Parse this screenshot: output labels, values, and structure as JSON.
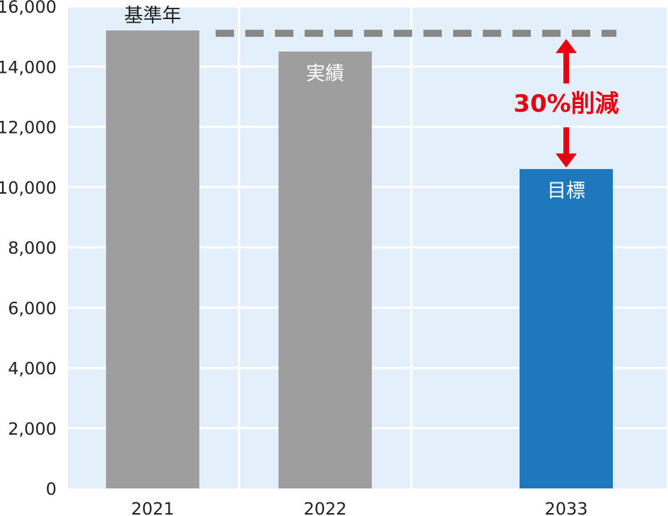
{
  "chart_data": {
    "type": "bar",
    "categories": [
      "2021",
      "2022",
      "2033"
    ],
    "values": [
      15200,
      14500,
      10600
    ],
    "bar_labels": [
      "基準年",
      "実績",
      "目標"
    ],
    "ylim": [
      0,
      16000
    ],
    "yticks": [
      "0",
      "2,000",
      "4,000",
      "6,000",
      "8,000",
      "10,000",
      "12,000",
      "14,000",
      "16,000"
    ],
    "grid": true,
    "reference_value": 15200,
    "reduction_label": "30%削減",
    "title": "",
    "xlabel": "",
    "ylabel": "",
    "colors": {
      "background": "#e3effb",
      "grid": "#ffffff",
      "baseline_bar": "#9e9e9e",
      "actual_bar": "#9e9e9e",
      "target_bar": "#1e78be",
      "reference_line": "#888888",
      "arrow": "#e60012",
      "reduction_text": "#e60012",
      "label_on_dark": "#ffffff",
      "label_default": "#222222"
    }
  }
}
